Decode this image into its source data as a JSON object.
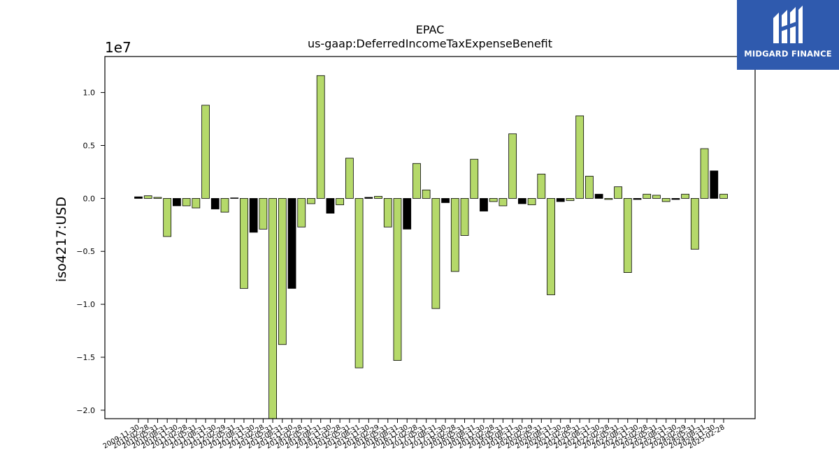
{
  "logo": {
    "brand": "MIDGARD FINANCE",
    "icon": "midgard-logo-icon",
    "bg_color": "#2f5aae"
  },
  "chart_data": {
    "type": "bar",
    "title": "EPAC",
    "subtitle": "us-gaap:DeferredIncomeTaxExpenseBenefit",
    "ylabel": "iso4217:USD",
    "xlabel": "",
    "y_multiplier_label": "1e7",
    "y_multiplier": 10000000,
    "ylim": [
      -20800000,
      13400000
    ],
    "yticks": [
      -20000000,
      -15000000,
      -10000000,
      -5000000,
      0,
      5000000,
      10000000
    ],
    "ytick_labels": [
      "−2.0",
      "−1.5",
      "−1.0",
      "−0.5",
      "0.0",
      "0.5",
      "1.0"
    ],
    "grid": false,
    "colors": {
      "positive_period": "#b5d96a",
      "other_period": "#000000"
    },
    "categories": [
      "2009-11-30",
      "2010-02-28",
      "2010-05-31",
      "2010-08-31",
      "2010-11-30",
      "2011-02-28",
      "2011-05-31",
      "2011-08-31",
      "2011-11-30",
      "2012-02-29",
      "2012-05-31",
      "2012-08-31",
      "2012-11-30",
      "2013-02-28",
      "2013-05-31",
      "2013-08-31",
      "2013-11-30",
      "2014-02-28",
      "2014-05-31",
      "2014-08-31",
      "2014-11-30",
      "2015-02-28",
      "2015-05-31",
      "2015-08-31",
      "2015-11-30",
      "2016-02-29",
      "2016-05-31",
      "2016-08-31",
      "2016-11-30",
      "2017-02-28",
      "2017-05-31",
      "2017-08-31",
      "2017-11-30",
      "2018-02-28",
      "2018-05-31",
      "2018-08-31",
      "2018-11-30",
      "2019-02-28",
      "2019-05-31",
      "2019-08-31",
      "2019-11-30",
      "2020-02-29",
      "2020-05-31",
      "2020-08-31",
      "2020-11-30",
      "2021-02-28",
      "2021-05-31",
      "2021-08-31",
      "2021-11-30",
      "2022-02-28",
      "2022-05-31",
      "2022-08-31",
      "2022-11-30",
      "2023-02-28",
      "2023-05-31",
      "2023-08-31",
      "2023-11-30",
      "2024-02-29",
      "2024-05-31",
      "2024-08-31",
      "2024-11-30",
      "2025-02-28"
    ],
    "values": [
      150000,
      250000,
      100000,
      -3600000,
      -700000,
      -700000,
      -900000,
      8800000,
      -1000000,
      -1300000,
      50000,
      -8500000,
      -3200000,
      -2900000,
      -20800000,
      -13800000,
      -8500000,
      -2700000,
      -500000,
      11600000,
      -1400000,
      -600000,
      3800000,
      -16000000,
      100000,
      200000,
      -2700000,
      -15300000,
      -2900000,
      3300000,
      800000,
      -10400000,
      -400000,
      -6900000,
      -3500000,
      3700000,
      -1200000,
      -300000,
      -700000,
      6100000,
      -500000,
      -600000,
      2300000,
      -9100000,
      -300000,
      -200000,
      7800000,
      2100000,
      400000,
      -100000,
      1100000,
      -7000000,
      -100000,
      400000,
      300000,
      -300000,
      -100000,
      400000,
      -4800000,
      4700000,
      2600000,
      400000
    ],
    "bar_colors": [
      "#000000",
      "#b5d96a",
      "#b5d96a",
      "#b5d96a",
      "#000000",
      "#b5d96a",
      "#b5d96a",
      "#b5d96a",
      "#000000",
      "#b5d96a",
      "#b5d96a",
      "#b5d96a",
      "#000000",
      "#b5d96a",
      "#b5d96a",
      "#b5d96a",
      "#000000",
      "#b5d96a",
      "#b5d96a",
      "#b5d96a",
      "#000000",
      "#b5d96a",
      "#b5d96a",
      "#b5d96a",
      "#000000",
      "#b5d96a",
      "#b5d96a",
      "#b5d96a",
      "#000000",
      "#b5d96a",
      "#b5d96a",
      "#b5d96a",
      "#000000",
      "#b5d96a",
      "#b5d96a",
      "#b5d96a",
      "#000000",
      "#b5d96a",
      "#b5d96a",
      "#b5d96a",
      "#000000",
      "#b5d96a",
      "#b5d96a",
      "#b5d96a",
      "#000000",
      "#b5d96a",
      "#b5d96a",
      "#b5d96a",
      "#000000",
      "#b5d96a",
      "#b5d96a",
      "#b5d96a",
      "#000000",
      "#b5d96a",
      "#b5d96a",
      "#b5d96a",
      "#000000",
      "#b5d96a",
      "#b5d96a",
      "#b5d96a",
      "#000000",
      "#b5d96a"
    ]
  }
}
